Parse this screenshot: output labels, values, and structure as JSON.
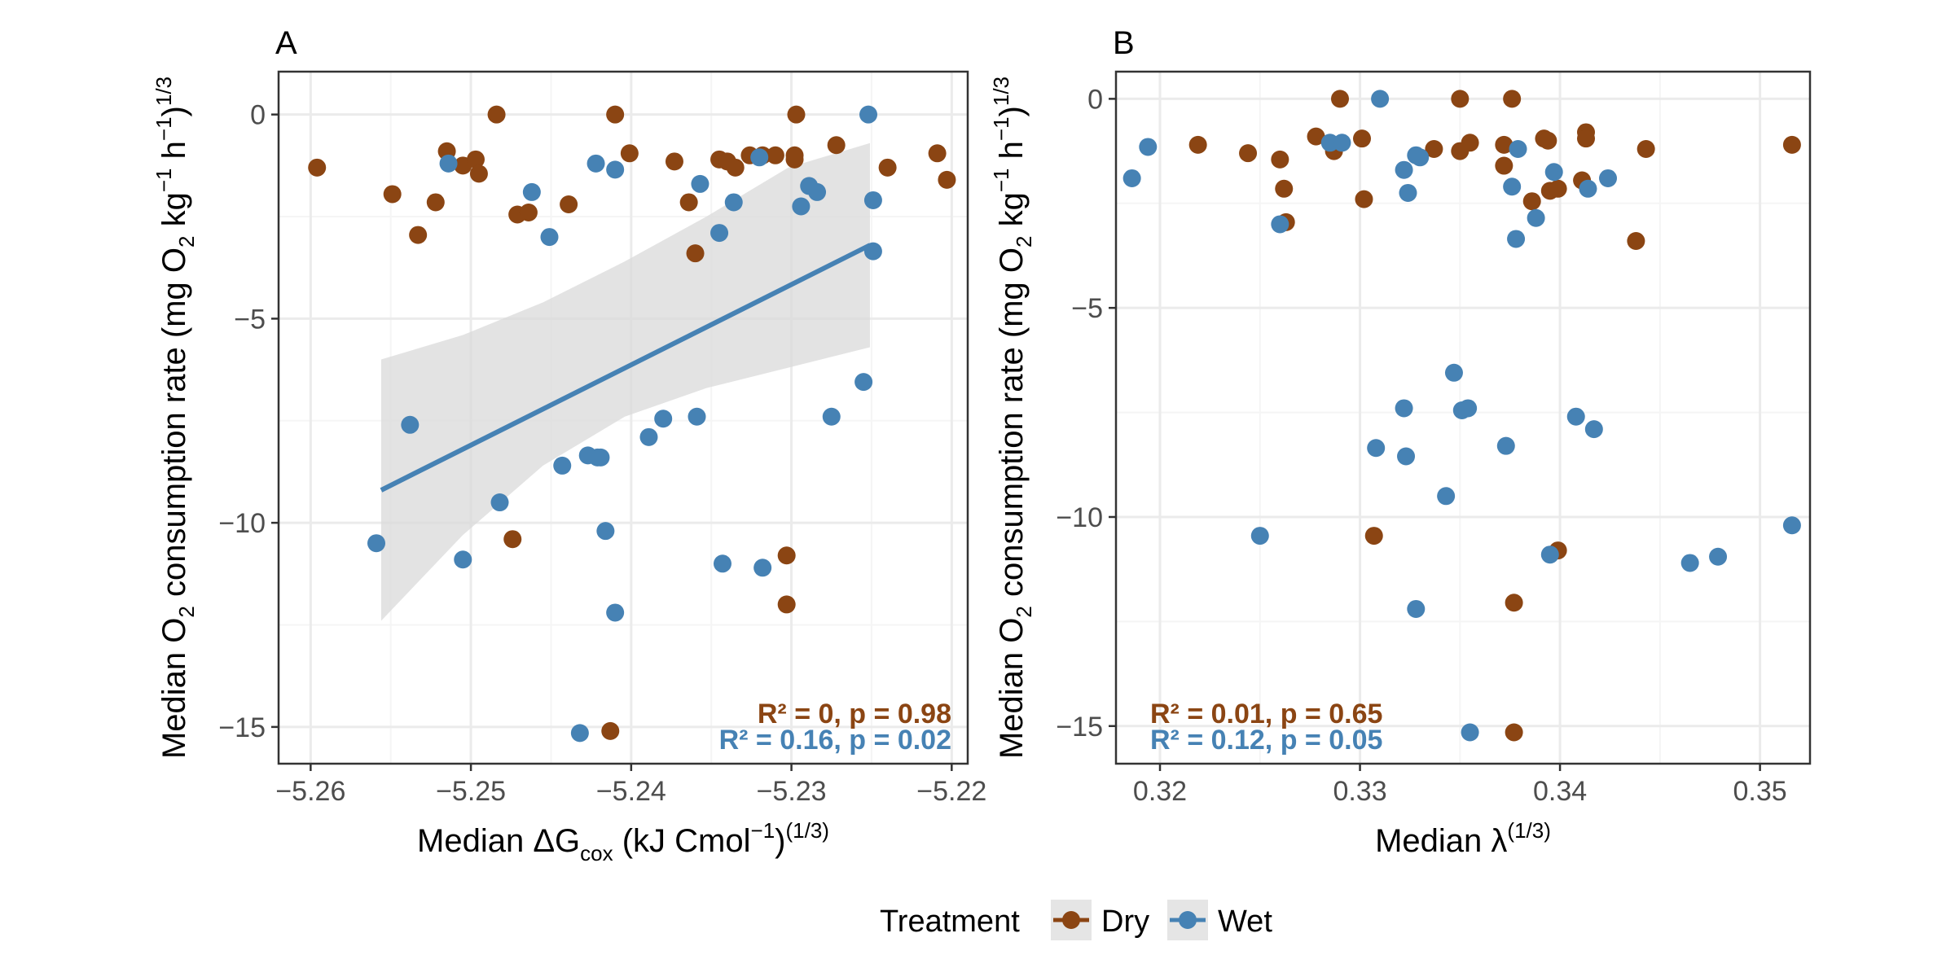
{
  "colors": {
    "Dry": "#8B4513",
    "Wet": "#4682B4",
    "ribbon": "#d9d9d9",
    "grid_major": "#ebebeb",
    "grid_minor": "#f5f5f5"
  },
  "legend": {
    "title": "Treatment",
    "entries": [
      "Dry",
      "Wet"
    ]
  },
  "y_label_parts": [
    "Median  O",
    "2",
    " consumption rate  (mg O",
    "2",
    " kg",
    "−1",
    " h",
    "−1",
    ")",
    "1/3"
  ],
  "chart_data": [
    {
      "panel": "A",
      "type": "scatter",
      "xlabel_parts": [
        "Median ΔG",
        "cox",
        " (kJ Cmol",
        "−1",
        ")",
        "(1/3)"
      ],
      "xlim": [
        -5.262,
        -5.219
      ],
      "ylim": [
        -15.9,
        1.05
      ],
      "xticks": [
        -5.26,
        -5.25,
        -5.24,
        -5.23,
        -5.22
      ],
      "xtick_labels": [
        "−5.26",
        "−5.25",
        "−5.24",
        "−5.23",
        "−5.22"
      ],
      "yticks": [
        0,
        -5,
        -10,
        -15
      ],
      "ytick_labels": [
        "0",
        "−5",
        "−10",
        "−15"
      ],
      "annotations": [
        {
          "treatment": "Dry",
          "text": "R² = 0, p = 0.98"
        },
        {
          "treatment": "Wet",
          "text": "R² = 0.16, p = 0.02"
        }
      ],
      "fit": {
        "treatment": "Wet",
        "x": [
          -5.2556,
          -5.2251
        ],
        "y": [
          -9.2,
          -3.2
        ],
        "ci_x": [
          -5.2556,
          -5.2505,
          -5.2455,
          -5.2404,
          -5.2353,
          -5.2302,
          -5.2251
        ],
        "ci_lower": [
          -12.4,
          -10.3,
          -8.6,
          -7.4,
          -6.7,
          -6.2,
          -5.7
        ],
        "ci_upper": [
          -6.0,
          -5.4,
          -4.6,
          -3.6,
          -2.5,
          -1.3,
          -0.7
        ]
      },
      "series": [
        {
          "name": "Dry",
          "x": [
            -5.2596,
            -5.2549,
            -5.2533,
            -5.2522,
            -5.2515,
            -5.2505,
            -5.2497,
            -5.2495,
            -5.2484,
            -5.2474,
            -5.2471,
            -5.2464,
            -5.2439,
            -5.241,
            -5.2401,
            -5.2373,
            -5.2364,
            -5.236,
            -5.2345,
            -5.234,
            -5.2335,
            -5.2326,
            -5.2318,
            -5.231,
            -5.2303,
            -5.2298,
            -5.2297,
            -5.2303,
            -5.2272,
            -5.224,
            -5.2209,
            -5.2203,
            -5.2413,
            -5.2298
          ],
          "y": [
            -1.3,
            -1.95,
            -2.95,
            -2.15,
            -0.9,
            -1.25,
            -1.1,
            -1.45,
            0.0,
            -10.4,
            -2.45,
            -2.4,
            -2.2,
            0.0,
            -0.95,
            -1.15,
            -2.15,
            -3.4,
            -1.1,
            -1.15,
            -1.3,
            -1.0,
            -1.0,
            -1.0,
            -10.8,
            -1.1,
            0.0,
            -12.0,
            -0.75,
            -1.3,
            -0.95,
            -1.6,
            -15.1,
            -1.0
          ]
        },
        {
          "name": "Wet",
          "x": [
            -5.2559,
            -5.2505,
            -5.2538,
            -5.2514,
            -5.2482,
            -5.2462,
            -5.2451,
            -5.2443,
            -5.2427,
            -5.2422,
            -5.2419,
            -5.2421,
            -5.2416,
            -5.241,
            -5.241,
            -5.2389,
            -5.238,
            -5.2359,
            -5.2357,
            -5.2345,
            -5.2343,
            -5.2336,
            -5.232,
            -5.2318,
            -5.2294,
            -5.2289,
            -5.2284,
            -5.2275,
            -5.2255,
            -5.2252,
            -5.2249,
            -5.2249,
            -5.2432
          ],
          "y": [
            -10.5,
            -10.9,
            -7.6,
            -1.2,
            -9.5,
            -1.9,
            -3.0,
            -8.6,
            -8.35,
            -1.2,
            -8.4,
            -8.4,
            -10.2,
            -1.35,
            -12.2,
            -7.9,
            -7.45,
            -7.4,
            -1.7,
            -2.9,
            -11.0,
            -2.15,
            -1.05,
            -11.1,
            -2.25,
            -1.75,
            -1.9,
            -7.4,
            -6.55,
            0.0,
            -2.1,
            -3.35,
            -15.15
          ]
        }
      ]
    },
    {
      "panel": "B",
      "type": "scatter",
      "xlabel_parts": [
        "Median λ",
        "(1/3)"
      ],
      "xlim": [
        0.3178,
        0.3525
      ],
      "ylim": [
        -15.9,
        0.65
      ],
      "xticks": [
        0.32,
        0.33,
        0.34,
        0.35
      ],
      "xtick_labels": [
        "0.32",
        "0.33",
        "0.34",
        "0.35"
      ],
      "yticks": [
        0,
        -5,
        -10,
        -15
      ],
      "ytick_labels": [
        "0",
        "−5",
        "−10",
        "−15"
      ],
      "annotations": [
        {
          "treatment": "Dry",
          "text": "R² = 0.01, p = 0.65"
        },
        {
          "treatment": "Wet",
          "text": "R² = 0.12, p = 0.05"
        }
      ],
      "series": [
        {
          "name": "Dry",
          "x": [
            0.3219,
            0.3244,
            0.326,
            0.3262,
            0.3263,
            0.3278,
            0.3287,
            0.329,
            0.3301,
            0.3302,
            0.3307,
            0.3337,
            0.335,
            0.335,
            0.3355,
            0.3372,
            0.3372,
            0.3376,
            0.3377,
            0.3377,
            0.3386,
            0.3392,
            0.3394,
            0.3395,
            0.3399,
            0.3399,
            0.3411,
            0.3413,
            0.3413,
            0.3438,
            0.3443,
            0.3516
          ],
          "y": [
            -1.1,
            -1.3,
            -1.45,
            -2.15,
            -2.95,
            -0.9,
            -1.25,
            0.0,
            -0.95,
            -2.4,
            -10.45,
            -1.2,
            0.0,
            -1.25,
            -1.05,
            -1.1,
            -1.6,
            0.0,
            -12.05,
            -15.15,
            -2.45,
            -0.95,
            -1.0,
            -2.2,
            -2.15,
            -10.8,
            -1.95,
            -0.8,
            -0.95,
            -3.4,
            -1.2,
            -1.1
          ]
        },
        {
          "name": "Wet",
          "x": [
            0.3186,
            0.3194,
            0.325,
            0.326,
            0.3285,
            0.3291,
            0.3308,
            0.331,
            0.3322,
            0.3322,
            0.3323,
            0.3324,
            0.3328,
            0.3328,
            0.333,
            0.3343,
            0.3347,
            0.3351,
            0.3354,
            0.3355,
            0.3373,
            0.3376,
            0.3378,
            0.3379,
            0.3388,
            0.3395,
            0.3397,
            0.3408,
            0.3414,
            0.3417,
            0.3424,
            0.3465,
            0.3479,
            0.3516
          ],
          "y": [
            -1.9,
            -1.15,
            -10.45,
            -3.0,
            -1.05,
            -1.05,
            -8.35,
            0.0,
            -1.7,
            -7.4,
            -8.55,
            -2.25,
            -12.2,
            -1.35,
            -1.4,
            -9.5,
            -6.55,
            -7.45,
            -7.4,
            -15.15,
            -8.3,
            -2.1,
            -3.35,
            -1.2,
            -2.85,
            -10.9,
            -1.75,
            -7.6,
            -2.15,
            -7.9,
            -1.9,
            -11.1,
            -10.95,
            -10.2
          ]
        }
      ]
    }
  ]
}
